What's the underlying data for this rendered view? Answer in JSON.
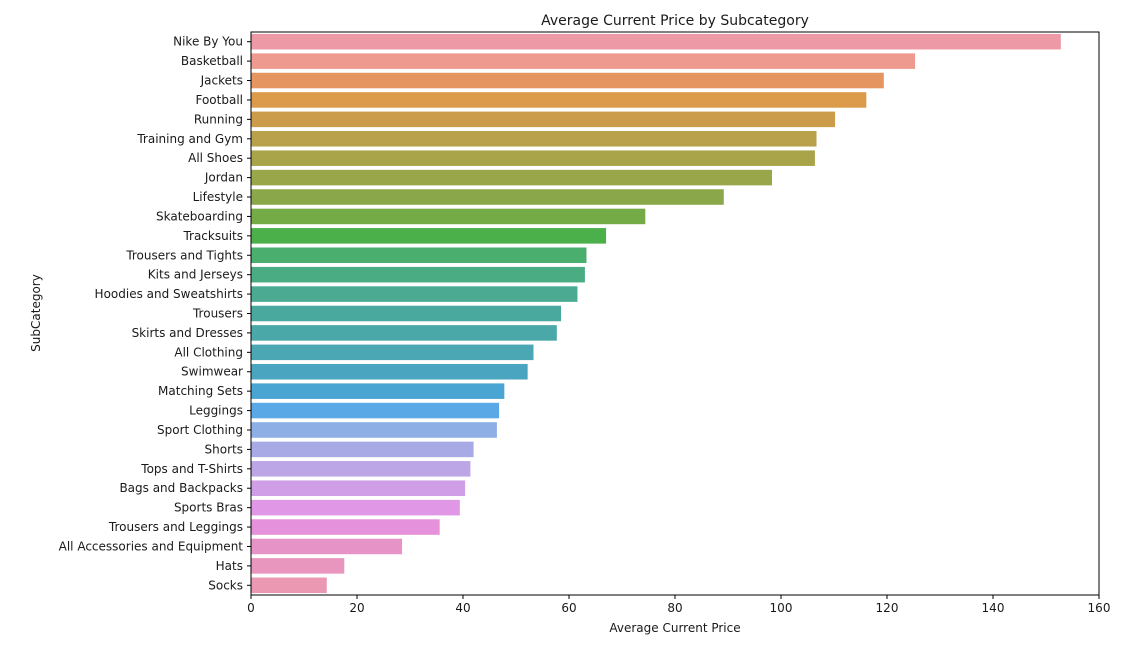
{
  "chart_data": {
    "type": "bar",
    "orientation": "horizontal",
    "title": "Average Current Price by Subcategory",
    "xlabel": "Average Current Price",
    "ylabel": "SubCategory",
    "xlim": [
      0,
      160
    ],
    "xticks": [
      0,
      20,
      40,
      60,
      80,
      100,
      120,
      140,
      160
    ],
    "grid": false,
    "categories": [
      "Nike By You",
      "Basketball",
      "Jackets",
      "Football",
      "Running",
      "Training and Gym",
      "All Shoes",
      "Jordan",
      "Lifestyle",
      "Skateboarding",
      "Tracksuits",
      "Trousers and Tights",
      "Kits and Jerseys",
      "Hoodies and Sweatshirts",
      "Trousers",
      "Skirts and Dresses",
      "All Clothing",
      "Swimwear",
      "Matching Sets",
      "Leggings",
      "Sport Clothing",
      "Shorts",
      "Tops and T-Shirts",
      "Bags and Backpacks",
      "Sports Bras",
      "Trousers and Leggings",
      "All Accessories and Equipment",
      "Hats",
      "Socks"
    ],
    "values": [
      152.8,
      125.3,
      119.4,
      116.1,
      110.2,
      106.7,
      106.4,
      98.3,
      89.2,
      74.4,
      67.0,
      63.3,
      63.0,
      61.6,
      58.5,
      57.7,
      53.3,
      52.2,
      47.8,
      46.8,
      46.4,
      42.0,
      41.4,
      40.4,
      39.4,
      35.6,
      28.5,
      17.6,
      14.3
    ],
    "colors": [
      "#ee9aa6",
      "#ee9a8e",
      "#e59560",
      "#dc9a4b",
      "#cb9d4a",
      "#b9a04a",
      "#a9a44a",
      "#9aa64a",
      "#8aa84a",
      "#75ab47",
      "#4bb04a",
      "#4aae6e",
      "#4aac82",
      "#4aaa92",
      "#4aa99e",
      "#4aa8a8",
      "#4aa7b3",
      "#4aa6c0",
      "#4aa5d2",
      "#5aa9e6",
      "#8eafe6",
      "#a8aae6",
      "#bda6e6",
      "#cf9ee6",
      "#df97e6",
      "#e591dc",
      "#e693c8",
      "#e896be",
      "#eb98b3"
    ]
  }
}
